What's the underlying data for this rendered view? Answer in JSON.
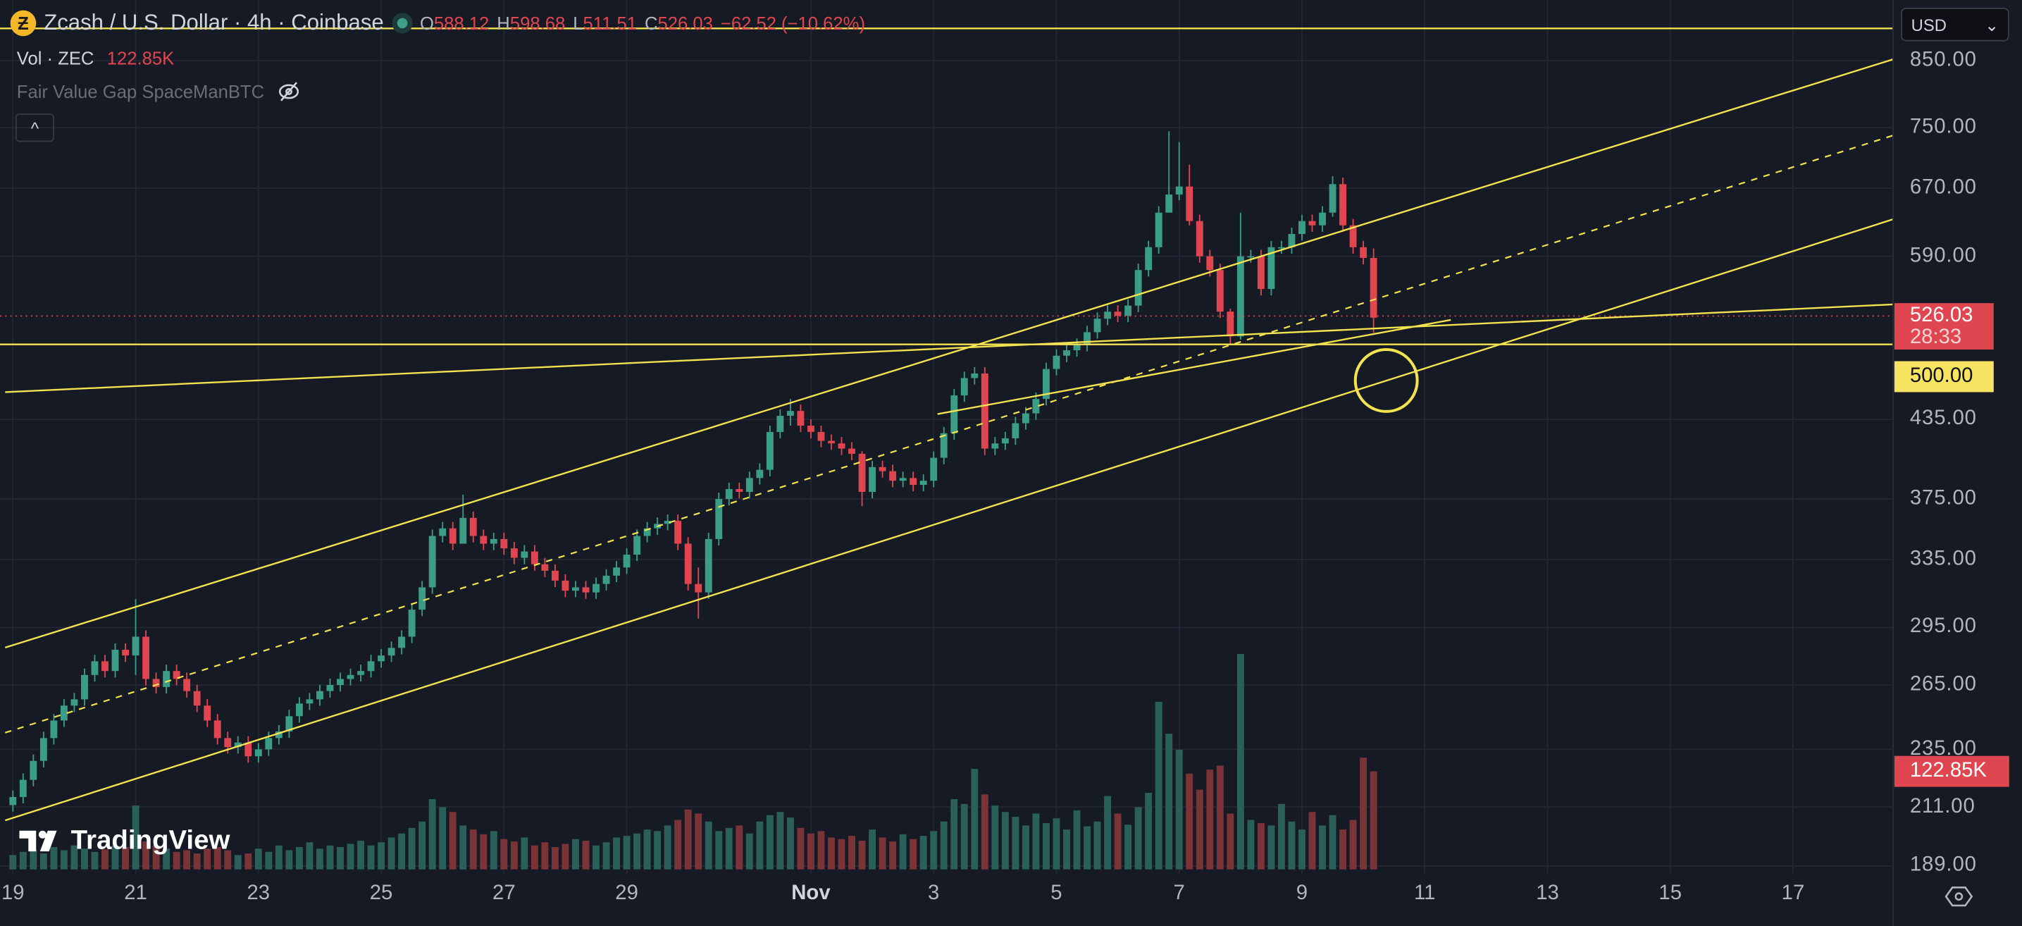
{
  "header": {
    "symbol_icon": "zcash-logo-icon",
    "title": "Zcash / U.S. Dollar · 4h · Coinbase",
    "ohlc": {
      "o_label": "O",
      "o": "588.12",
      "h_label": "H",
      "h": "598.68",
      "l_label": "L",
      "l": "511.51",
      "c_label": "C",
      "c": "526.03",
      "change": "−62.52 (−10.62%)"
    },
    "volume_label": "Vol · ZEC",
    "volume_value": "122.85K",
    "indicator_label": "Fair Value Gap SpaceManBTC",
    "indicator_icon": "eye-off-icon",
    "collapse_icon": "^"
  },
  "currency_select": {
    "value": "USD",
    "icon": "chevron-down-icon"
  },
  "price_axis": {
    "scale": "log",
    "ticks": [
      "850.00",
      "750.00",
      "670.00",
      "590.00",
      "435.00",
      "375.00",
      "335.00",
      "295.00",
      "265.00",
      "235.00",
      "211.00",
      "189.00"
    ],
    "current_price": "526.03",
    "countdown": "28:33",
    "alert_level": "500.00",
    "volume_tag": "122.85K"
  },
  "time_axis": {
    "ticks": [
      {
        "label": "19",
        "day": 0
      },
      {
        "label": "21",
        "day": 2
      },
      {
        "label": "23",
        "day": 4
      },
      {
        "label": "25",
        "day": 6
      },
      {
        "label": "27",
        "day": 8
      },
      {
        "label": "29",
        "day": 10
      },
      {
        "label": "Nov",
        "day": 13,
        "bold": true
      },
      {
        "label": "3",
        "day": 15
      },
      {
        "label": "5",
        "day": 17
      },
      {
        "label": "7",
        "day": 19
      },
      {
        "label": "9",
        "day": 21
      },
      {
        "label": "11",
        "day": 23
      },
      {
        "label": "13",
        "day": 25
      },
      {
        "label": "15",
        "day": 27
      },
      {
        "label": "17",
        "day": 29
      }
    ]
  },
  "colors": {
    "background": "#161a25",
    "grid": "#232733",
    "up": "#3b9c88",
    "down": "#e0464f",
    "up_volume": "#2b5f5a",
    "down_volume": "#7a3437",
    "drawing": "#f2e34f"
  },
  "chart_data": {
    "type": "candlestick",
    "interval": "4h",
    "first_candle": "Oct 19",
    "closes": [
      215,
      222,
      230,
      240,
      248,
      255,
      258,
      270,
      277,
      272,
      283,
      280,
      290,
      268,
      264,
      272,
      268,
      262,
      255,
      248,
      240,
      236,
      238,
      232,
      235,
      240,
      243,
      250,
      256,
      258,
      262,
      265,
      268,
      270,
      272,
      277,
      280,
      284,
      290,
      305,
      318,
      350,
      355,
      345,
      362,
      350,
      345,
      348,
      342,
      336,
      340,
      332,
      328,
      322,
      316,
      318,
      315,
      320,
      325,
      330,
      338,
      350,
      355,
      358,
      360,
      345,
      320,
      315,
      348,
      375,
      382,
      380,
      390,
      396,
      425,
      438,
      442,
      430,
      425,
      418,
      416,
      412,
      408,
      380,
      398,
      395,
      388,
      390,
      385,
      388,
      405,
      424,
      455,
      470,
      474,
      412,
      416,
      420,
      432,
      440,
      452,
      478,
      490,
      495,
      500,
      512,
      525,
      532,
      528,
      538,
      575,
      600,
      640,
      662,
      672,
      630,
      590,
      575,
      532,
      508,
      590,
      590,
      555,
      600,
      600,
      615,
      630,
      625,
      640,
      675,
      625,
      600,
      588.12,
      526.03
    ],
    "wick_overrides": {
      "12": [
        311,
        270
      ],
      "44": [
        378,
        345
      ],
      "67": [
        330,
        300
      ],
      "76": [
        452,
        430
      ],
      "83": [
        410,
        370
      ],
      "113": [
        745,
        640
      ],
      "114": [
        730,
        655
      ],
      "115": [
        700,
        625
      ],
      "119": [
        535,
        500
      ],
      "120": [
        640,
        505
      ],
      "129": [
        685,
        635
      ],
      "133": [
        598.68,
        511.51
      ]
    },
    "volumes_k": [
      18,
      22,
      25,
      20,
      28,
      24,
      30,
      26,
      22,
      25,
      30,
      28,
      80,
      35,
      30,
      26,
      22,
      24,
      20,
      26,
      28,
      24,
      18,
      20,
      26,
      22,
      30,
      24,
      28,
      34,
      26,
      30,
      28,
      32,
      36,
      30,
      34,
      40,
      45,
      52,
      60,
      88,
      78,
      72,
      55,
      50,
      44,
      48,
      38,
      35,
      40,
      30,
      34,
      28,
      32,
      38,
      36,
      30,
      34,
      40,
      42,
      45,
      50,
      48,
      55,
      62,
      75,
      70,
      60,
      48,
      52,
      55,
      45,
      60,
      68,
      72,
      65,
      52,
      45,
      48,
      40,
      38,
      42,
      36,
      50,
      40,
      35,
      44,
      38,
      42,
      48,
      60,
      88,
      82,
      126,
      94,
      80,
      72,
      66,
      55,
      70,
      58,
      64,
      50,
      74,
      54,
      60,
      92,
      70,
      56,
      78,
      96,
      210,
      170,
      150,
      120,
      100,
      125,
      130,
      70,
      270,
      62,
      58,
      55,
      82,
      60,
      50,
      72,
      55,
      68,
      50,
      62,
      140,
      122.85
    ]
  },
  "watermark": "TradingView"
}
